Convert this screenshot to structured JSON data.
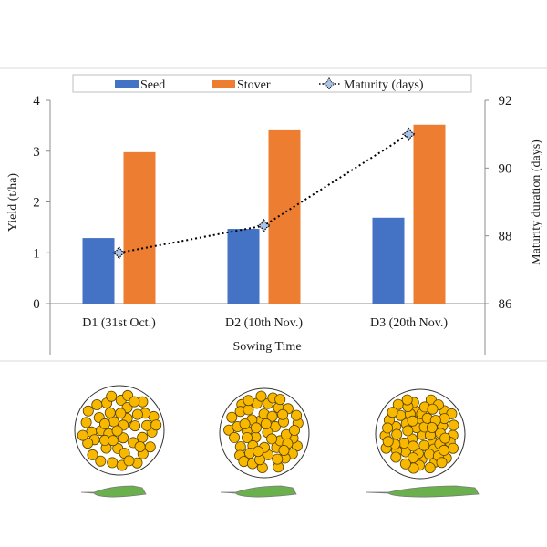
{
  "chart_data": {
    "type": "bar",
    "title": "",
    "xlabel": "Sowing Time",
    "ylabel": "Yield (t/ha)",
    "y2label": "Maturity duration (days)",
    "categories": [
      "D1 (31st Oct.)",
      "D2 (10th Nov.)",
      "D3 (20th Nov.)"
    ],
    "ylim": [
      0,
      4
    ],
    "yticks": [
      "0",
      "1",
      "2",
      "3",
      "4"
    ],
    "y2lim": [
      86,
      92
    ],
    "y2ticks": [
      "86",
      "88",
      "90",
      "92"
    ],
    "grid": false,
    "legend_position": "top",
    "series": [
      {
        "name": "Seed",
        "type": "bar",
        "axis": "left",
        "color": "#4472c4",
        "values": [
          1.29,
          1.47,
          1.69
        ]
      },
      {
        "name": "Stover",
        "type": "bar",
        "axis": "left",
        "color": "#ed7d31",
        "values": [
          2.98,
          3.41,
          3.52
        ]
      },
      {
        "name": "Maturity (days)",
        "type": "line",
        "axis": "right",
        "style": "dotted",
        "marker": "star",
        "marker_color": "#a9c4eb",
        "color": "#000000",
        "values": [
          87.5,
          88.3,
          91.0
        ]
      }
    ]
  },
  "illustration": {
    "description": "Grain density per sowing time with leaf below",
    "panels": [
      {
        "category": "D1",
        "grain_count": 48,
        "leaf_length": "short"
      },
      {
        "category": "D2",
        "grain_count": 55,
        "leaf_length": "medium"
      },
      {
        "category": "D3",
        "grain_count": 65,
        "leaf_length": "long"
      }
    ],
    "grain_color": "#f8b800",
    "leaf_color": "#6ab04c"
  }
}
